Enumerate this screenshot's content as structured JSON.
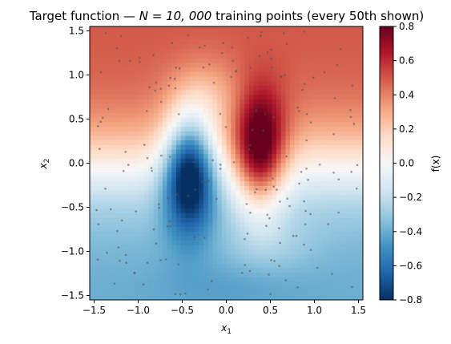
{
  "chart_data": {
    "type": "heatmap",
    "title": "Target function — N = 10, 000 training points (every 50th shown)",
    "title_parts": {
      "prefix": "Target function — ",
      "math": "N = 10, 000",
      "suffix": " training points (every 50th shown)"
    },
    "xlabel": "x",
    "xlabel_sub": "1",
    "ylabel": "x",
    "ylabel_sub": "2",
    "xlim": [
      -1.55,
      1.55
    ],
    "ylim": [
      -1.55,
      1.55
    ],
    "xticks": [
      -1.5,
      -1.0,
      -0.5,
      0.0,
      0.5,
      1.0,
      1.5
    ],
    "xtick_labels": [
      "−1.5",
      "−1.0",
      "−0.5",
      "0.0",
      "0.5",
      "1.0",
      "1.5"
    ],
    "yticks": [
      -1.5,
      -1.0,
      -0.5,
      0.0,
      0.5,
      1.0,
      1.5
    ],
    "ytick_labels": [
      "−1.5",
      "−1.0",
      "−0.5",
      "0.0",
      "0.5",
      "1.0",
      "1.5"
    ],
    "colormap": "RdBu_r",
    "colormap_stops": [
      "#053061",
      "#2166ac",
      "#4393c3",
      "#92c5de",
      "#d1e5f0",
      "#f7f7f7",
      "#fddbc7",
      "#f4a582",
      "#d6604d",
      "#b2182b",
      "#67001f"
    ],
    "colorbar": {
      "label": "f(x)",
      "vmin": -0.8,
      "vmax": 0.8,
      "ticks": [
        -0.8,
        -0.6,
        -0.4,
        -0.2,
        0.0,
        0.2,
        0.4,
        0.6,
        0.8
      ],
      "tick_labels": [
        "−0.8",
        "−0.6",
        "−0.4",
        "−0.2",
        "0.0",
        "0.2",
        "0.4",
        "0.6",
        "0.8"
      ]
    },
    "grid_resolution": 60,
    "field_features": [
      {
        "kind": "negative-peak",
        "x": -0.42,
        "y": -0.1,
        "value": -0.78
      },
      {
        "kind": "positive-peak",
        "x": 0.38,
        "y": 0.1,
        "value": 0.76
      },
      {
        "kind": "top-region",
        "y_range": [
          0.5,
          1.55
        ],
        "value_range": [
          0.3,
          0.55
        ]
      },
      {
        "kind": "bottom-region",
        "y_range": [
          -1.55,
          -0.5
        ],
        "value_range": [
          -0.45,
          -0.15
        ]
      }
    ],
    "scatter": {
      "name": "training points (every 50th shown)",
      "color": "#555555",
      "n_points": 200
    }
  }
}
